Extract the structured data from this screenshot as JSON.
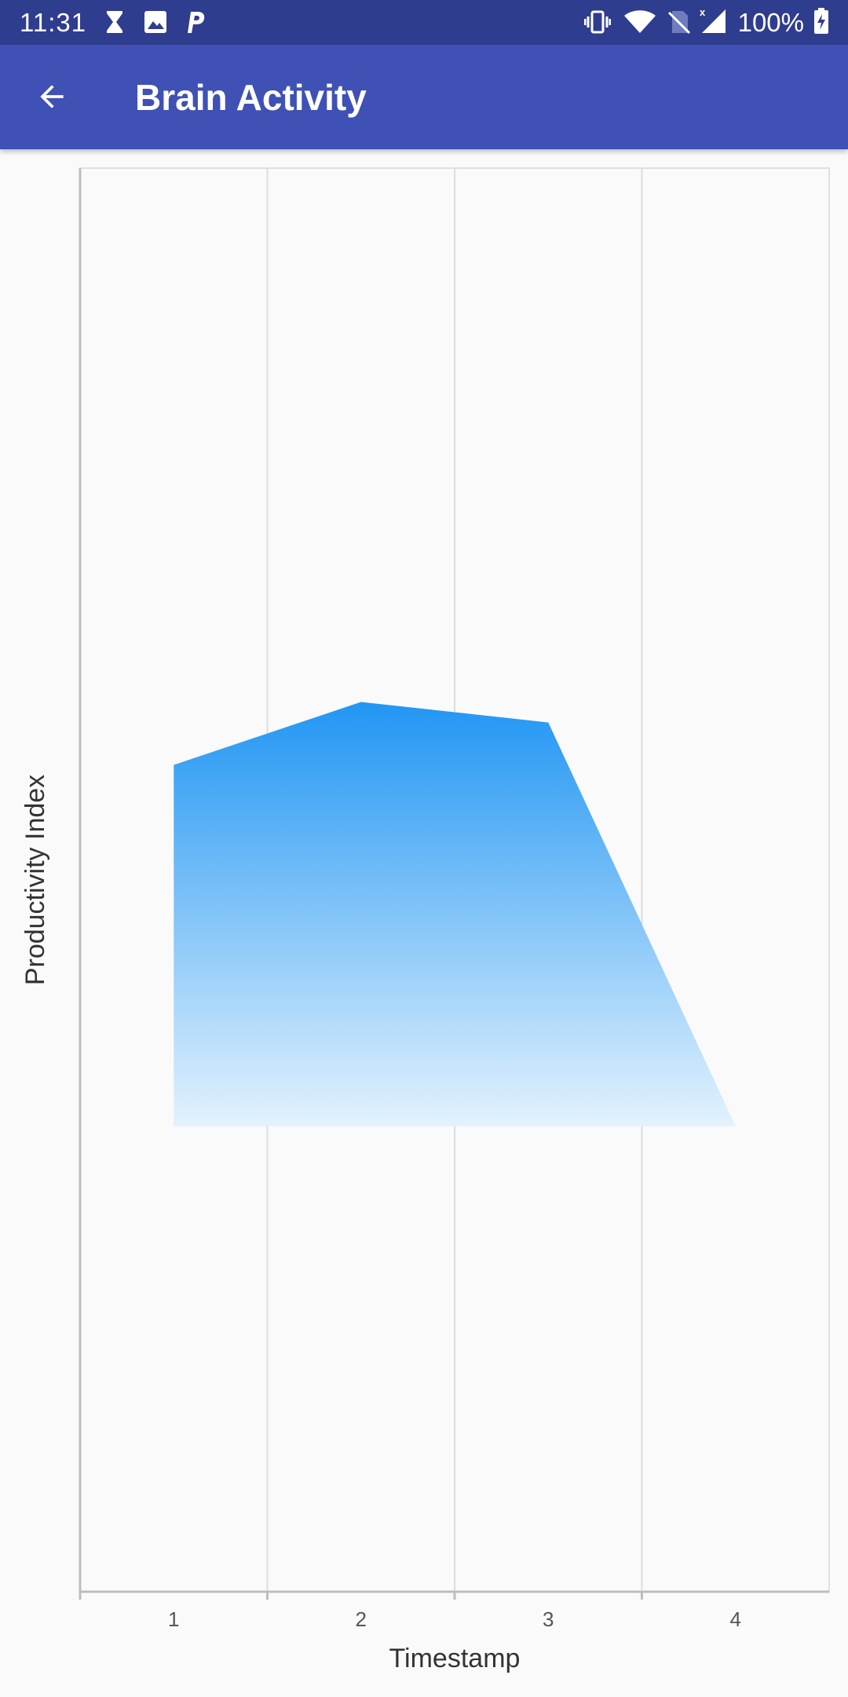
{
  "status_bar": {
    "time": "11:31",
    "battery": "100%",
    "icons": [
      "hourglass-icon",
      "image-icon",
      "parking-app-icon",
      "vibrate-icon",
      "wifi-icon",
      "no-sim-icon",
      "signal-icon",
      "battery-charging-icon"
    ]
  },
  "app_bar": {
    "title": "Brain Activity",
    "back_icon": "arrow-back-icon"
  },
  "colors": {
    "status_bar": "#2f3d8f",
    "app_bar": "#3f51b5",
    "area_top": "#2196f3",
    "area_bottom": "#e3f2fd"
  },
  "chart_data": {
    "type": "area",
    "x": [
      1,
      2,
      3,
      4
    ],
    "x_ticks": [
      "1",
      "2",
      "3",
      "4"
    ],
    "xlabel": "Timestamp",
    "ylabel": "Productivity Index",
    "series": [
      {
        "values": [
          -1.8,
          0.5,
          -0.25,
          -15
        ]
      }
    ],
    "baseline": -15,
    "xlim": [
      0.5,
      4.5
    ],
    "ylim": [
      -32,
      20
    ],
    "grid": "vertical",
    "legend": "none"
  }
}
